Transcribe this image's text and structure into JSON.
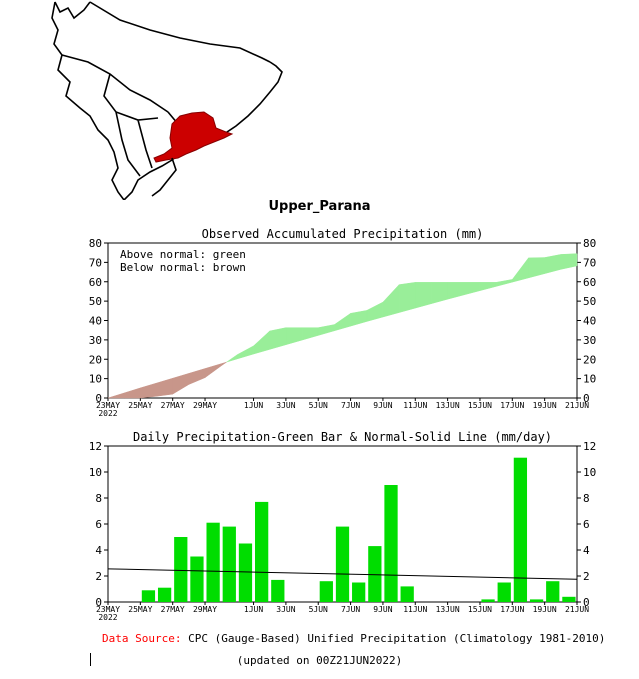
{
  "region_title": "Upper_Parana",
  "footer": {
    "source_label": "Data Source:",
    "source_text": "CPC (Gauge-Based) Unified Precipitation (Climatology 1981-2010)",
    "updated": "(updated on 00Z21JUN2022)"
  },
  "map": {
    "land_color": "#ffffff",
    "region_color": "#cc0000"
  },
  "chart_data": [
    {
      "type": "area",
      "title": "Observed Accumulated Precipitation (mm)",
      "legend": [
        "Above normal: green",
        "Below normal: brown"
      ],
      "legend_position": "top-left",
      "colors": {
        "above": "#99ee99",
        "below": "#c8968a"
      },
      "ylim": [
        0,
        80
      ],
      "yticks": [
        0,
        10,
        20,
        30,
        40,
        50,
        60,
        70,
        80
      ],
      "xlim": [
        0,
        29
      ],
      "xticks": [
        {
          "x": 0,
          "label": "23MAY"
        },
        {
          "x": 2,
          "label": "25MAY"
        },
        {
          "x": 4,
          "label": "27MAY"
        },
        {
          "x": 6,
          "label": "29MAY"
        },
        {
          "x": 9,
          "label": "1JUN"
        },
        {
          "x": 11,
          "label": "3JUN"
        },
        {
          "x": 13,
          "label": "5JUN"
        },
        {
          "x": 15,
          "label": "7JUN"
        },
        {
          "x": 17,
          "label": "9JUN"
        },
        {
          "x": 19,
          "label": "11JUN"
        },
        {
          "x": 21,
          "label": "13JUN"
        },
        {
          "x": 23,
          "label": "15JUN"
        },
        {
          "x": 25,
          "label": "17JUN"
        },
        {
          "x": 27,
          "label": "19JUN"
        },
        {
          "x": 29,
          "label": "21JUN"
        }
      ],
      "year_label": "2022",
      "x": [
        0,
        1,
        2,
        3,
        4,
        5,
        6,
        7,
        8,
        9,
        10,
        11,
        12,
        13,
        14,
        15,
        16,
        17,
        18,
        19,
        20,
        21,
        22,
        23,
        24,
        25,
        26,
        27,
        28,
        29
      ],
      "observed": [
        0,
        0,
        0,
        0.9,
        2.0,
        7.0,
        10.5,
        16.6,
        22.4,
        26.9,
        34.6,
        36.3,
        36.3,
        36.3,
        37.9,
        43.7,
        45.2,
        49.5,
        58.5,
        59.7,
        59.7,
        59.7,
        59.7,
        59.7,
        59.7,
        61.2,
        72.3,
        72.5,
        74.1,
        74.5
      ],
      "normal": [
        0,
        2.6,
        5.2,
        7.7,
        10.2,
        12.7,
        15.2,
        17.7,
        20.2,
        22.7,
        25.1,
        27.5,
        29.9,
        32.3,
        34.7,
        37.1,
        39.5,
        41.8,
        44.1,
        46.4,
        48.7,
        51.0,
        53.2,
        55.4,
        57.6,
        59.8,
        62.0,
        64.2,
        66.4,
        68.2
      ]
    },
    {
      "type": "bar",
      "title": "Daily Precipitation-Green Bar & Normal-Solid Line (mm/day)",
      "colors": {
        "bar": "#00dd00",
        "line": "#000000"
      },
      "ylim": [
        0,
        12
      ],
      "yticks": [
        0,
        2,
        4,
        6,
        8,
        10,
        12
      ],
      "xlim": [
        0,
        29
      ],
      "xticks": [
        {
          "x": 0,
          "label": "23MAY"
        },
        {
          "x": 2,
          "label": "25MAY"
        },
        {
          "x": 4,
          "label": "27MAY"
        },
        {
          "x": 6,
          "label": "29MAY"
        },
        {
          "x": 9,
          "label": "1JUN"
        },
        {
          "x": 11,
          "label": "3JUN"
        },
        {
          "x": 13,
          "label": "5JUN"
        },
        {
          "x": 15,
          "label": "7JUN"
        },
        {
          "x": 17,
          "label": "9JUN"
        },
        {
          "x": 19,
          "label": "11JUN"
        },
        {
          "x": 21,
          "label": "13JUN"
        },
        {
          "x": 23,
          "label": "15JUN"
        },
        {
          "x": 25,
          "label": "17JUN"
        },
        {
          "x": 27,
          "label": "19JUN"
        },
        {
          "x": 29,
          "label": "21JUN"
        }
      ],
      "year_label": "2022",
      "values": [
        0,
        0,
        0.9,
        1.1,
        5.0,
        3.5,
        6.1,
        5.8,
        4.5,
        7.7,
        1.7,
        0,
        0,
        1.6,
        5.8,
        1.5,
        4.3,
        9.0,
        1.2,
        0,
        0,
        0,
        0,
        0.2,
        1.5,
        11.1,
        0.2,
        1.6,
        0.4
      ],
      "normal": [
        2.55,
        1.75
      ]
    }
  ]
}
